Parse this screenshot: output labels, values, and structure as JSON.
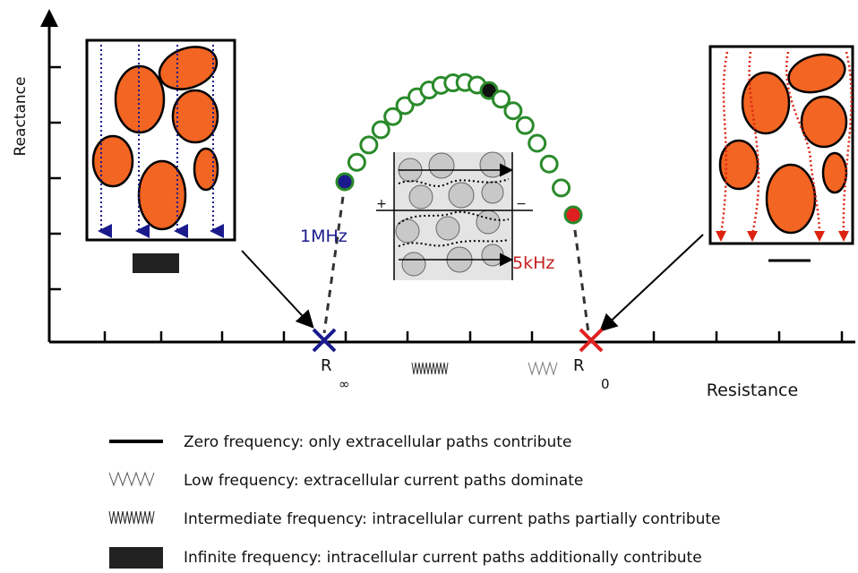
{
  "axes": {
    "y_label": "Reactance",
    "x_label": "Resistance"
  },
  "markers": {
    "high_freq": "1MHz",
    "low_freq": "5kHz",
    "r_inf": {
      "symbol": "R",
      "subscript": "∞"
    },
    "r_zero": {
      "symbol": "R",
      "subscript": "0"
    }
  },
  "inset": {
    "plus": "+",
    "minus": "−"
  },
  "legend": [
    {
      "label": "Zero frequency: only extracellular paths contribute"
    },
    {
      "label": "Low frequency: extracellular current paths dominate"
    },
    {
      "label": "Intermediate frequency: intracellular current paths partially contribute"
    },
    {
      "label": "Infinite frequency: intracellular current paths additionally contribute"
    }
  ]
}
